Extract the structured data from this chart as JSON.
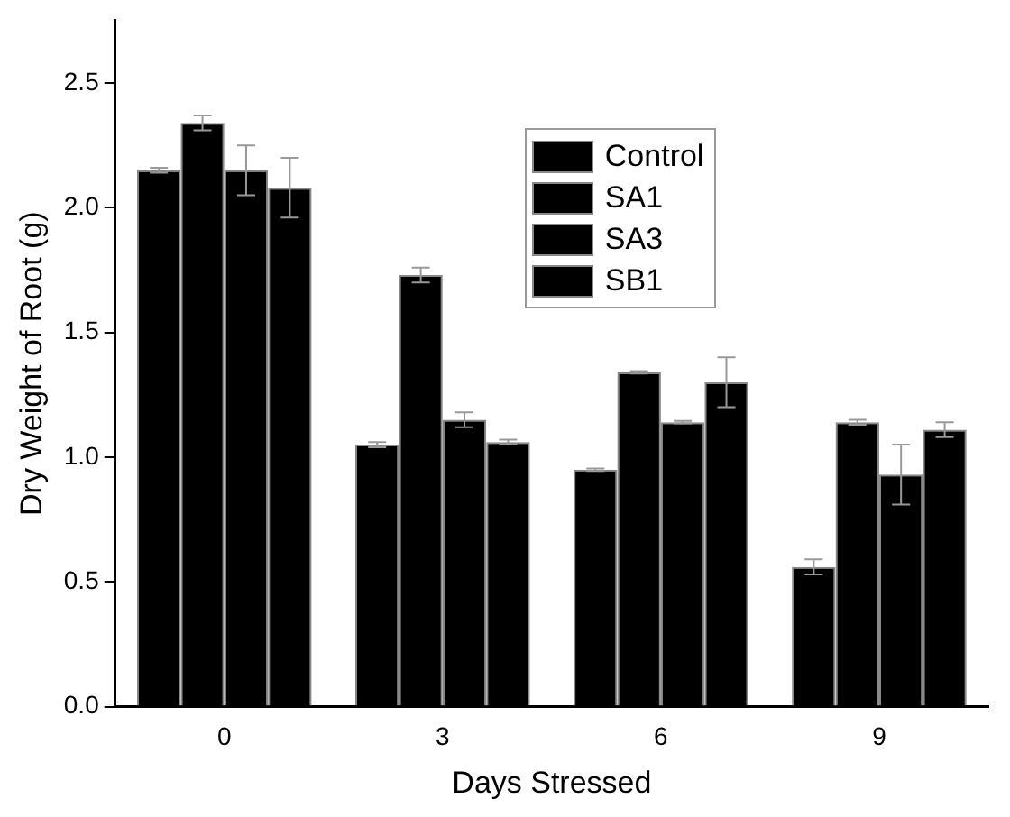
{
  "chart_data": {
    "type": "bar",
    "xlabel": "Days Stressed",
    "ylabel": "Dry Weight of Root (g)",
    "categories": [
      "0",
      "3",
      "6",
      "9"
    ],
    "series": [
      {
        "name": "Control",
        "color": "#000000",
        "values": [
          2.15,
          1.05,
          0.95,
          0.56
        ],
        "errors": [
          0.01,
          0.01,
          0.005,
          0.03
        ]
      },
      {
        "name": "SA1",
        "color": "#000000",
        "values": [
          2.34,
          1.73,
          1.34,
          1.14
        ],
        "errors": [
          0.03,
          0.03,
          0.005,
          0.01
        ]
      },
      {
        "name": "SA3",
        "color": "#000000",
        "values": [
          2.15,
          1.15,
          1.14,
          0.93
        ],
        "errors": [
          0.1,
          0.03,
          0.005,
          0.12
        ]
      },
      {
        "name": "SB1",
        "color": "#000000",
        "values": [
          2.08,
          1.06,
          1.3,
          1.11
        ],
        "errors": [
          0.12,
          0.01,
          0.1,
          0.03
        ]
      }
    ],
    "ylim": [
      0,
      2.75
    ],
    "yticks": [
      {
        "value": 0,
        "label": "0.0"
      },
      0.5,
      {
        "value": 1,
        "label": "1.0"
      },
      1.5,
      {
        "value": 2,
        "label": "2.0"
      },
      2.5
    ],
    "grid": false,
    "legend": "top right"
  }
}
